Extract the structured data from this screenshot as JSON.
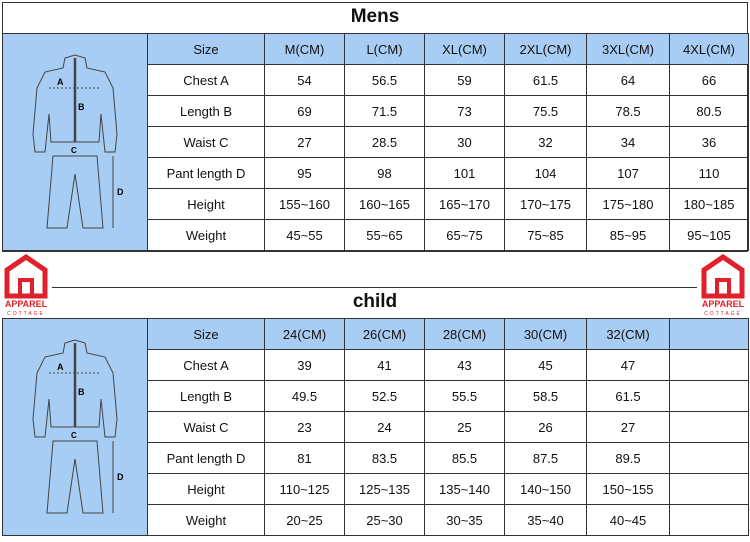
{
  "logo": {
    "text": "APPAREL",
    "subtext": "COTTAGE",
    "color": "#e0202a"
  },
  "header_color": "#a8cdf5",
  "diagram_labels": {
    "a": "A",
    "b": "B",
    "c": "C",
    "d": "D"
  },
  "mens": {
    "title": "Mens",
    "headers": [
      "Size",
      "M(CM)",
      "L(CM)",
      "XL(CM)",
      "2XL(CM)",
      "3XL(CM)",
      "4XL(CM)"
    ],
    "rows": [
      [
        "Chest A",
        "54",
        "56.5",
        "59",
        "61.5",
        "64",
        "66"
      ],
      [
        "Length B",
        "69",
        "71.5",
        "73",
        "75.5",
        "78.5",
        "80.5"
      ],
      [
        "Waist C",
        "27",
        "28.5",
        "30",
        "32",
        "34",
        "36"
      ],
      [
        "Pant length D",
        "95",
        "98",
        "101",
        "104",
        "107",
        "110"
      ],
      [
        "Height",
        "155~160",
        "160~165",
        "165~170",
        "170~175",
        "175~180",
        "180~185"
      ],
      [
        "Weight",
        "45~55",
        "55~65",
        "65~75",
        "75~85",
        "85~95",
        "95~105"
      ]
    ]
  },
  "child": {
    "title": "child",
    "headers": [
      "Size",
      "24(CM)",
      "26(CM)",
      "28(CM)",
      "30(CM)",
      "32(CM)",
      ""
    ],
    "rows": [
      [
        "Chest A",
        "39",
        "41",
        "43",
        "45",
        "47",
        ""
      ],
      [
        "Length B",
        "49.5",
        "52.5",
        "55.5",
        "58.5",
        "61.5",
        ""
      ],
      [
        "Waist C",
        "23",
        "24",
        "25",
        "26",
        "27",
        ""
      ],
      [
        "Pant length D",
        "81",
        "83.5",
        "85.5",
        "87.5",
        "89.5",
        ""
      ],
      [
        "Height",
        "110~125",
        "125~135",
        "135~140",
        "140~150",
        "150~155",
        ""
      ],
      [
        "Weight",
        "20~25",
        "25~30",
        "30~35",
        "35~40",
        "40~45",
        ""
      ]
    ]
  }
}
